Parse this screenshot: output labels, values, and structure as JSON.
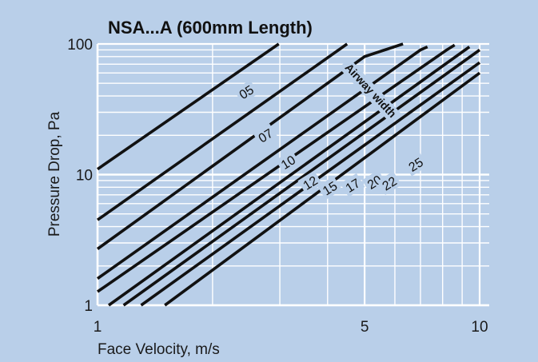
{
  "chart_data": {
    "type": "line",
    "title": "NSA...A (600mm Length)",
    "xlabel": "Face Velocity, m/s",
    "ylabel": "Pressure Drop, Pa",
    "x_scale": "log",
    "y_scale": "log",
    "xlim": [
      1,
      10
    ],
    "ylim": [
      1,
      100
    ],
    "x_ticks": [
      "1",
      "5",
      "10"
    ],
    "y_ticks": [
      "1",
      "10",
      "100"
    ],
    "grid": true,
    "annotation": "Airway width",
    "colors": {
      "background": "#b9cfe9",
      "grid": "#ffffff",
      "line": "#111111"
    },
    "series": [
      {
        "name": "05",
        "points": [
          [
            1.0,
            11.0
          ],
          [
            2.98,
            100
          ]
        ]
      },
      {
        "name": "07",
        "points": [
          [
            1.0,
            4.5
          ],
          [
            4.5,
            100
          ]
        ]
      },
      {
        "name": "10",
        "points": [
          [
            1.0,
            2.7
          ],
          [
            5.0,
            80
          ],
          [
            6.3,
            100
          ]
        ]
      },
      {
        "name": "12",
        "points": [
          [
            1.0,
            1.6
          ],
          [
            7.0,
            90
          ],
          [
            7.3,
            95
          ]
        ]
      },
      {
        "name": "15",
        "points": [
          [
            1.0,
            1.27
          ],
          [
            8.2,
            90
          ],
          [
            8.6,
            98
          ]
        ]
      },
      {
        "name": "17",
        "points": [
          [
            1.07,
            1.0
          ],
          [
            9.4,
            95
          ]
        ]
      },
      {
        "name": "20",
        "points": [
          [
            1.17,
            1.0
          ],
          [
            10.0,
            90
          ]
        ]
      },
      {
        "name": "22",
        "points": [
          [
            1.3,
            1.0
          ],
          [
            10.0,
            72
          ]
        ]
      },
      {
        "name": "25",
        "points": [
          [
            1.5,
            1.0
          ],
          [
            10.0,
            60
          ]
        ]
      }
    ],
    "series_labels": [
      {
        "name": "05",
        "x": 2.45,
        "y": 43,
        "angle": -32
      },
      {
        "name": "07",
        "x": 2.75,
        "y": 20,
        "angle": -32
      },
      {
        "name": "10",
        "x": 3.15,
        "y": 12.5,
        "angle": -32
      },
      {
        "name": "12",
        "x": 3.6,
        "y": 8.7,
        "angle": -32
      },
      {
        "name": "15",
        "x": 4.05,
        "y": 7.9,
        "angle": -32
      },
      {
        "name": "17",
        "x": 4.65,
        "y": 8.3,
        "angle": -32
      },
      {
        "name": "20",
        "x": 5.3,
        "y": 8.8,
        "angle": -32
      },
      {
        "name": "22",
        "x": 5.8,
        "y": 8.6,
        "angle": -32
      },
      {
        "name": "25",
        "x": 6.8,
        "y": 12,
        "angle": -32
      }
    ]
  }
}
